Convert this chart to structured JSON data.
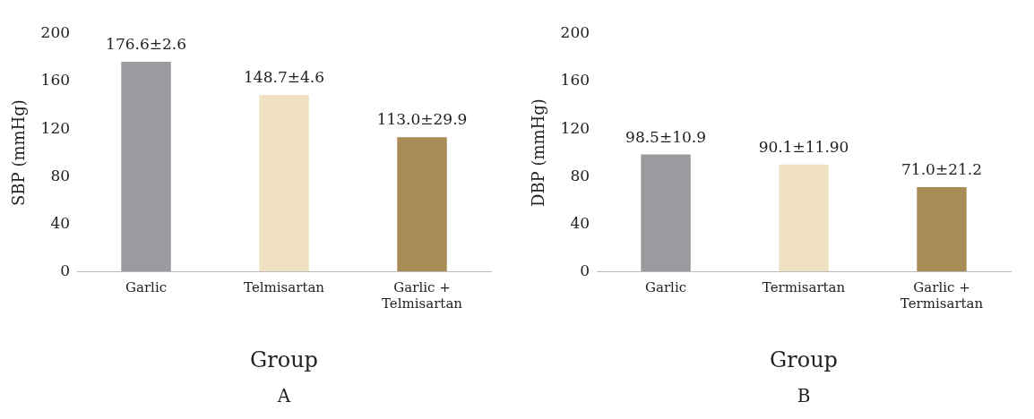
{
  "chart_data": [
    {
      "type": "bar",
      "xlabel": "Group",
      "ylabel": "SBP (mmHg)",
      "categories": [
        "Garlic",
        "Telmisartan",
        "Garlic + Telmisartan"
      ],
      "values": [
        176.6,
        148.7,
        113.0
      ],
      "colors": [
        "#9b9b9f",
        "#efe1c2",
        "#a98b55"
      ],
      "value_labels": [
        "176.6±2.6",
        "148.7±4.6",
        "113.0±29.9"
      ],
      "ylim": [
        0,
        200
      ],
      "yticks": [
        0,
        40,
        80,
        120,
        160,
        200
      ],
      "grid": false,
      "legend": false,
      "annotations": [
        "A"
      ]
    },
    {
      "type": "bar",
      "xlabel": "Group",
      "ylabel": "DBP (mmHg)",
      "categories": [
        "Garlic",
        "Termisartan",
        "Garlic + Termisartan"
      ],
      "values": [
        98.5,
        90.1,
        71.0
      ],
      "colors": [
        "#9b9b9f",
        "#efe1c2",
        "#a98b55"
      ],
      "value_labels": [
        "98.5±10.9",
        "90.1±11.90",
        "71.0±21.2"
      ],
      "ylim": [
        0,
        200
      ],
      "yticks": [
        0,
        40,
        80,
        120,
        160,
        200
      ],
      "grid": false,
      "legend": false,
      "annotations": [
        "B"
      ]
    }
  ]
}
